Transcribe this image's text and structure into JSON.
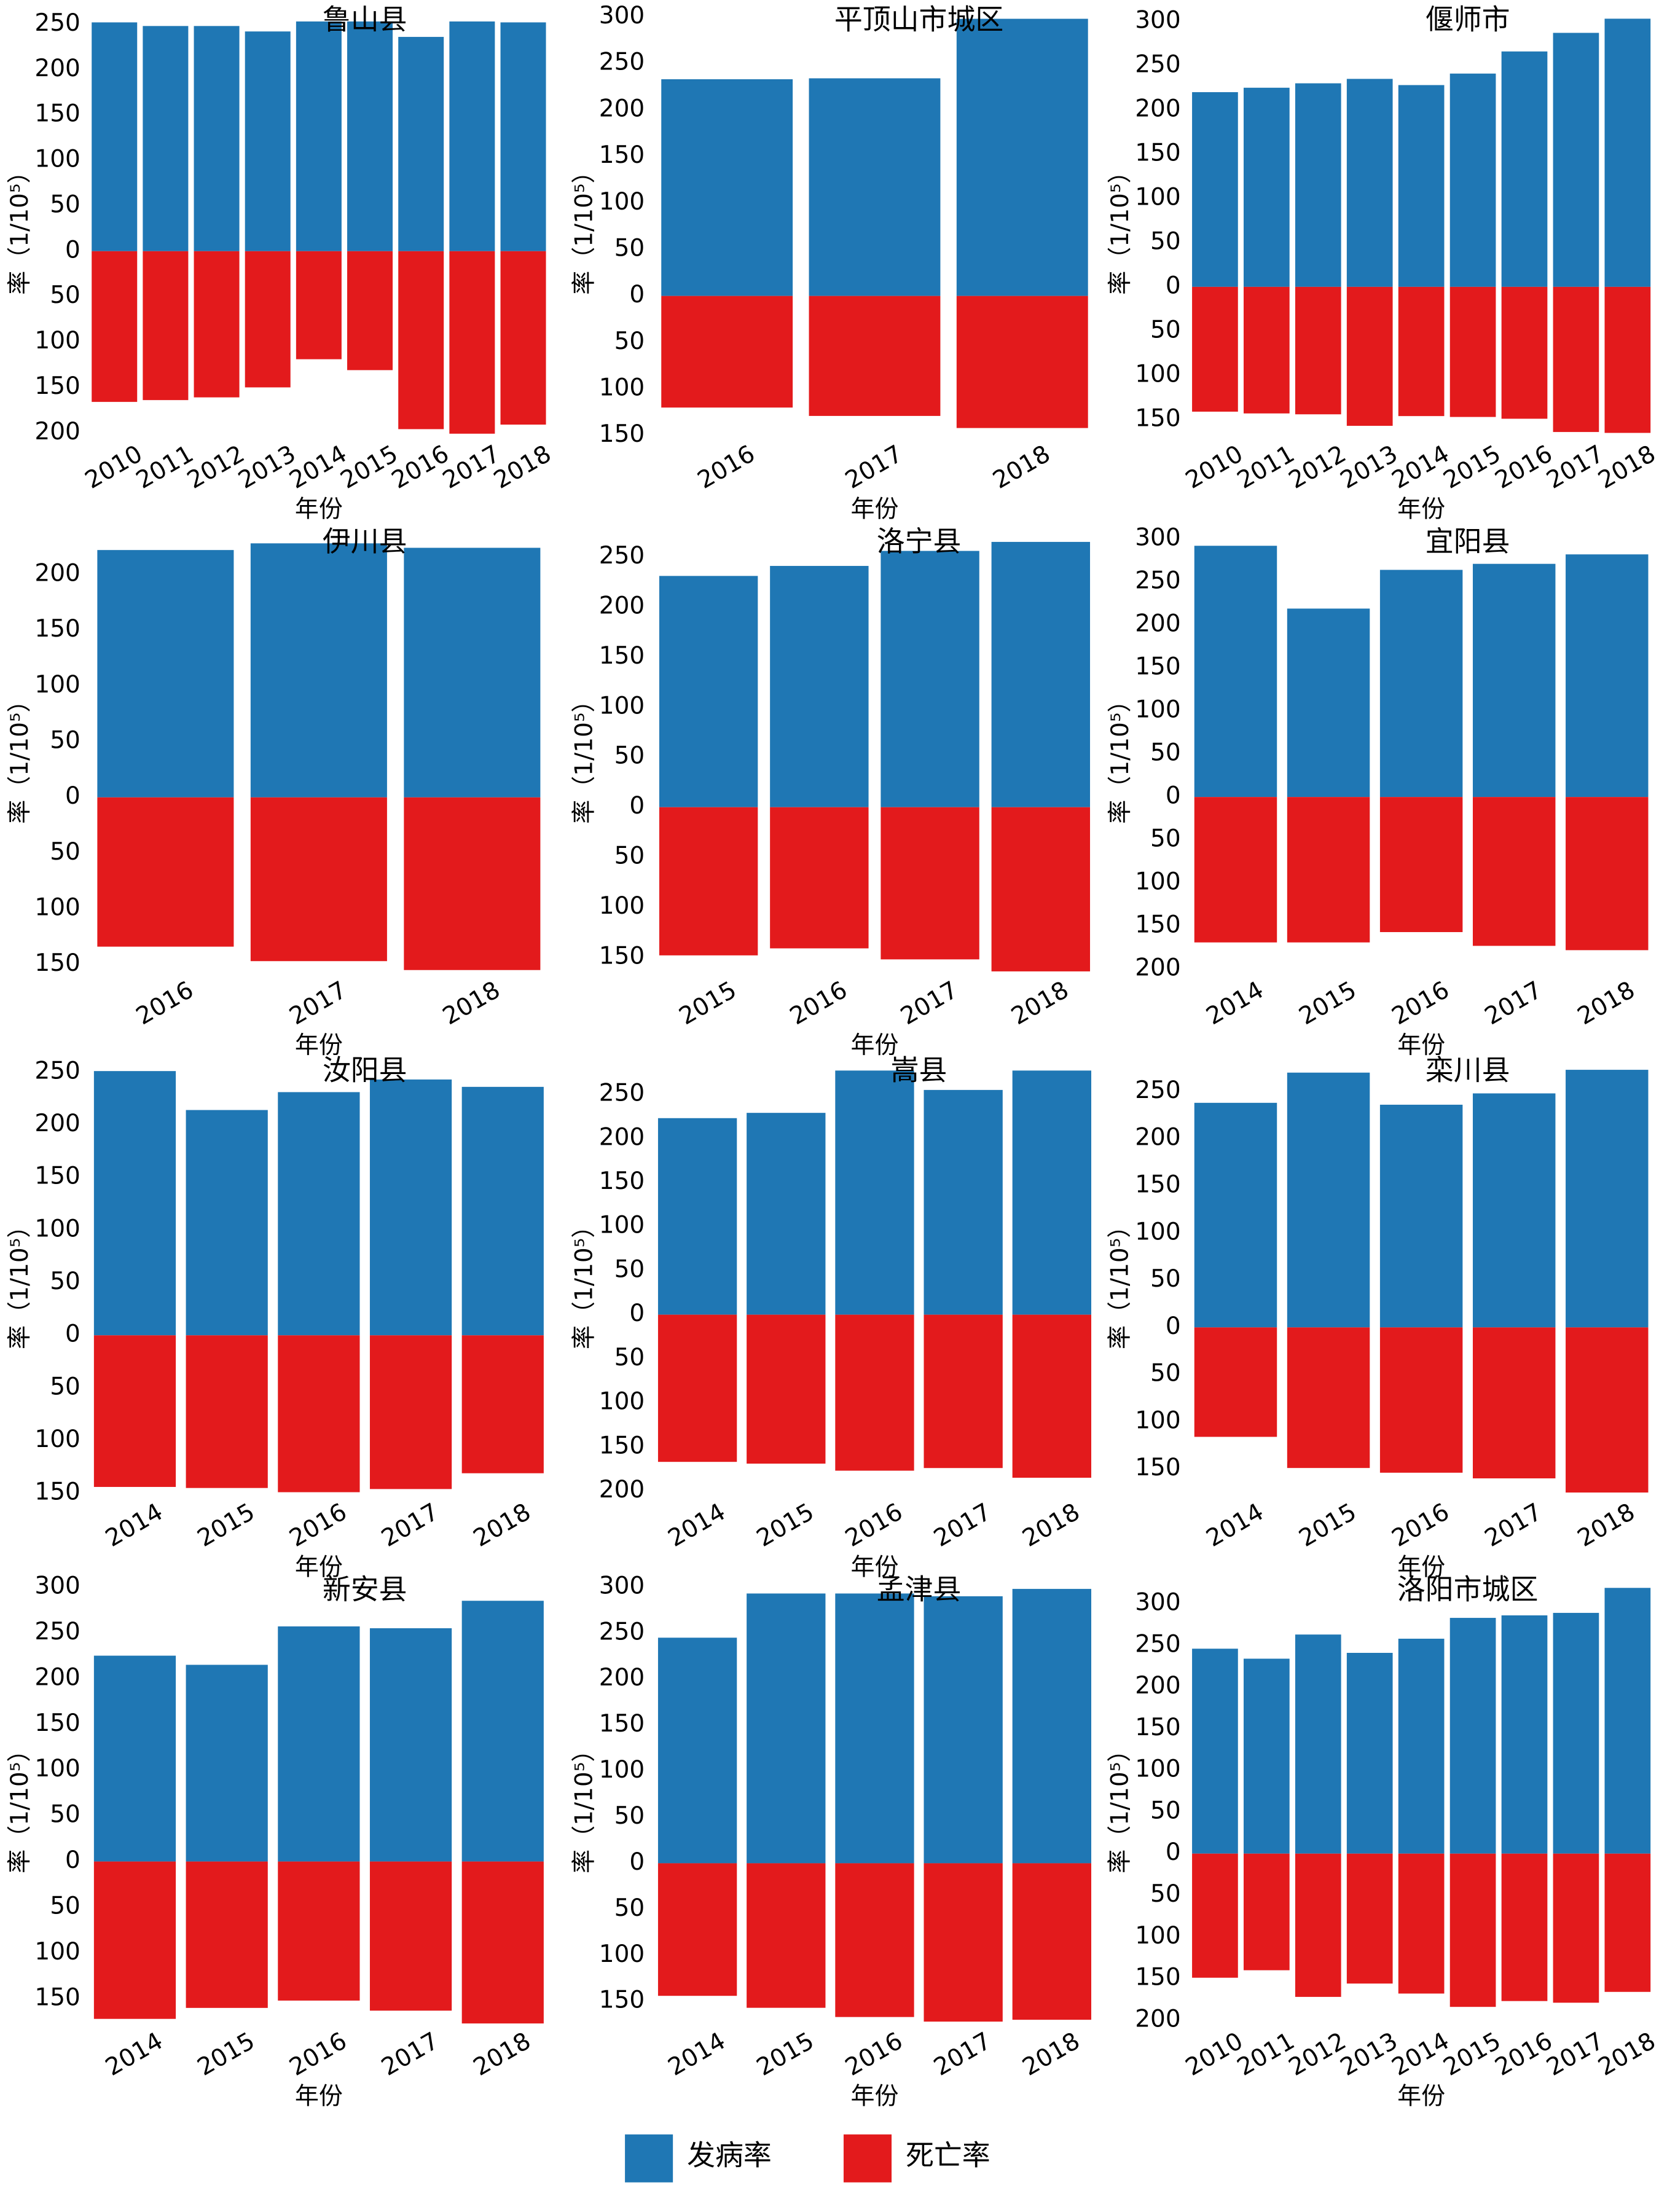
{
  "legend": [
    {
      "name": "发病率",
      "color": "#1f77b4"
    },
    {
      "name": "死亡率",
      "color": "#e31a1c"
    }
  ],
  "chart_data": [
    {
      "type": "bar",
      "title": "鲁山县",
      "xlabel": "年份",
      "ylabel": "率（1/10⁵）",
      "categories": [
        "2010",
        "2011",
        "2012",
        "2013",
        "2014",
        "2015",
        "2016",
        "2017",
        "2018"
      ],
      "series": [
        {
          "values": [
            252,
            248,
            248,
            242,
            253,
            253,
            236,
            253,
            252
          ]
        },
        {
          "values": [
            -166,
            -164,
            -161,
            -150,
            -119,
            -131,
            -196,
            -201,
            -191
          ]
        }
      ],
      "ylim": [
        -205,
        258
      ],
      "yticks": [
        250,
        200,
        150,
        100,
        50,
        0,
        {
          "value": -50,
          "label": "50"
        },
        {
          "value": -100,
          "label": "100"
        },
        {
          "value": -150,
          "label": "150"
        },
        {
          "value": -200,
          "label": "200"
        }
      ]
    },
    {
      "type": "bar",
      "title": "平顶山市城区",
      "xlabel": "年份",
      "ylabel": "率（1/10⁵）",
      "categories": [
        "2016",
        "2017",
        "2018"
      ],
      "series": [
        {
          "values": [
            233,
            234,
            298
          ]
        },
        {
          "values": [
            -120,
            -129,
            -142
          ]
        }
      ],
      "ylim": [
        -152,
        300
      ],
      "yticks": [
        300,
        250,
        200,
        150,
        100,
        50,
        0,
        {
          "value": -50,
          "label": "50"
        },
        {
          "value": -100,
          "label": "100"
        },
        {
          "value": -150,
          "label": "150"
        }
      ]
    },
    {
      "type": "bar",
      "title": "偃师市",
      "xlabel": "年份",
      "ylabel": "率（1/10⁵）",
      "categories": [
        "2010",
        "2011",
        "2012",
        "2013",
        "2014",
        "2015",
        "2016",
        "2017",
        "2018"
      ],
      "series": [
        {
          "values": [
            220,
            225,
            230,
            235,
            228,
            241,
            266,
            287,
            303
          ]
        },
        {
          "values": [
            -141,
            -143,
            -144,
            -157,
            -146,
            -147,
            -149,
            -164,
            -165
          ]
        }
      ],
      "ylim": [
        -170,
        305
      ],
      "yticks": [
        300,
        250,
        200,
        150,
        100,
        50,
        0,
        {
          "value": -50,
          "label": "50"
        },
        {
          "value": -100,
          "label": "100"
        },
        {
          "value": -150,
          "label": "150"
        }
      ]
    },
    {
      "type": "bar",
      "title": "伊川县",
      "xlabel": "年份",
      "ylabel": "率（1/10⁵）",
      "categories": [
        "2016",
        "2017",
        "2018"
      ],
      "series": [
        {
          "values": [
            222,
            228,
            224
          ]
        },
        {
          "values": [
            -134,
            -147,
            -155
          ]
        }
      ],
      "ylim": [
        -158,
        232
      ],
      "yticks": [
        200,
        150,
        100,
        50,
        0,
        {
          "value": -50,
          "label": "50"
        },
        {
          "value": -100,
          "label": "100"
        },
        {
          "value": -150,
          "label": "150"
        }
      ]
    },
    {
      "type": "bar",
      "title": "洛宁县",
      "xlabel": "年份",
      "ylabel": "率（1/10⁵）",
      "categories": [
        "2015",
        "2016",
        "2017",
        "2018"
      ],
      "series": [
        {
          "values": [
            231,
            241,
            256,
            265
          ]
        },
        {
          "values": [
            -148,
            -141,
            -152,
            -164
          ]
        }
      ],
      "ylim": [
        -166,
        268
      ],
      "yticks": [
        250,
        200,
        150,
        100,
        50,
        0,
        {
          "value": -50,
          "label": "50"
        },
        {
          "value": -100,
          "label": "100"
        },
        {
          "value": -150,
          "label": "150"
        }
      ]
    },
    {
      "type": "bar",
      "title": "宜阳县",
      "xlabel": "年份",
      "ylabel": "率（1/10⁵）",
      "categories": [
        "2014",
        "2015",
        "2016",
        "2017",
        "2018"
      ],
      "series": [
        {
          "values": [
            292,
            219,
            264,
            271,
            282
          ]
        },
        {
          "values": [
            -169,
            -169,
            -157,
            -173,
            -178
          ]
        }
      ],
      "ylim": [
        -205,
        300
      ],
      "yticks": [
        300,
        250,
        200,
        150,
        100,
        50,
        0,
        {
          "value": -50,
          "label": "50"
        },
        {
          "value": -100,
          "label": "100"
        },
        {
          "value": -150,
          "label": "150"
        },
        {
          "value": -200,
          "label": "200"
        }
      ]
    },
    {
      "type": "bar",
      "title": "汝阳县",
      "xlabel": "年份",
      "ylabel": "率（1/10⁵）",
      "categories": [
        "2014",
        "2015",
        "2016",
        "2017",
        "2018"
      ],
      "series": [
        {
          "values": [
            251,
            214,
            231,
            243,
            236
          ]
        },
        {
          "values": [
            -144,
            -145,
            -149,
            -146,
            -131
          ]
        }
      ],
      "ylim": [
        -152,
        254
      ],
      "yticks": [
        250,
        200,
        150,
        100,
        50,
        0,
        {
          "value": -50,
          "label": "50"
        },
        {
          "value": -100,
          "label": "100"
        },
        {
          "value": -150,
          "label": "150"
        }
      ]
    },
    {
      "type": "bar",
      "title": "嵩县",
      "xlabel": "年份",
      "ylabel": "率（1/10⁵）",
      "categories": [
        "2014",
        "2015",
        "2016",
        "2017",
        "2018"
      ],
      "series": [
        {
          "values": [
            223,
            229,
            277,
            255,
            277
          ]
        },
        {
          "values": [
            -167,
            -169,
            -177,
            -174,
            -185
          ]
        }
      ],
      "ylim": [
        -205,
        280
      ],
      "yticks": [
        250,
        200,
        150,
        100,
        50,
        0,
        {
          "value": -50,
          "label": "50"
        },
        {
          "value": -100,
          "label": "100"
        },
        {
          "value": -150,
          "label": "150"
        },
        {
          "value": -200,
          "label": "200"
        }
      ]
    },
    {
      "type": "bar",
      "title": "栾川县",
      "xlabel": "年份",
      "ylabel": "率（1/10⁵）",
      "categories": [
        "2014",
        "2015",
        "2016",
        "2017",
        "2018"
      ],
      "series": [
        {
          "values": [
            238,
            270,
            236,
            248,
            273
          ]
        },
        {
          "values": [
            -116,
            -149,
            -154,
            -160,
            -175
          ]
        }
      ],
      "ylim": [
        -178,
        275
      ],
      "yticks": [
        250,
        200,
        150,
        100,
        50,
        0,
        {
          "value": -50,
          "label": "50"
        },
        {
          "value": -100,
          "label": "100"
        },
        {
          "value": -150,
          "label": "150"
        }
      ]
    },
    {
      "type": "bar",
      "title": "新安县",
      "xlabel": "年份",
      "ylabel": "率（1/10⁵）",
      "categories": [
        "2014",
        "2015",
        "2016",
        "2017",
        "2018"
      ],
      "series": [
        {
          "values": [
            225,
            215,
            257,
            255,
            285
          ]
        },
        {
          "values": [
            -172,
            -160,
            -152,
            -163,
            -177
          ]
        }
      ],
      "ylim": [
        -178,
        300
      ],
      "yticks": [
        300,
        250,
        200,
        150,
        100,
        50,
        0,
        {
          "value": -50,
          "label": "50"
        },
        {
          "value": -100,
          "label": "100"
        },
        {
          "value": -150,
          "label": "150"
        }
      ]
    },
    {
      "type": "bar",
      "title": "孟津县",
      "xlabel": "年份",
      "ylabel": "率（1/10⁵）",
      "categories": [
        "2014",
        "2015",
        "2016",
        "2017",
        "2018"
      ],
      "series": [
        {
          "values": [
            245,
            293,
            293,
            290,
            298
          ]
        },
        {
          "values": [
            -144,
            -157,
            -167,
            -172,
            -170
          ]
        }
      ],
      "ylim": [
        -175,
        300
      ],
      "yticks": [
        300,
        250,
        200,
        150,
        100,
        50,
        0,
        {
          "value": -50,
          "label": "50"
        },
        {
          "value": -100,
          "label": "100"
        },
        {
          "value": -150,
          "label": "150"
        }
      ]
    },
    {
      "type": "bar",
      "title": "洛阳市城区",
      "xlabel": "年份",
      "ylabel": "率（1/10⁵）",
      "categories": [
        "2010",
        "2011",
        "2012",
        "2013",
        "2014",
        "2015",
        "2016",
        "2017",
        "2018"
      ],
      "series": [
        {
          "values": [
            246,
            234,
            263,
            241,
            258,
            283,
            286,
            289,
            319
          ]
        },
        {
          "values": [
            -149,
            -140,
            -172,
            -156,
            -168,
            -184,
            -177,
            -179,
            -166
          ]
        }
      ],
      "ylim": [
        -205,
        320
      ],
      "yticks": [
        300,
        250,
        200,
        150,
        100,
        50,
        0,
        {
          "value": -50,
          "label": "50"
        },
        {
          "value": -100,
          "label": "100"
        },
        {
          "value": -150,
          "label": "150"
        },
        {
          "value": -200,
          "label": "200"
        }
      ]
    }
  ]
}
